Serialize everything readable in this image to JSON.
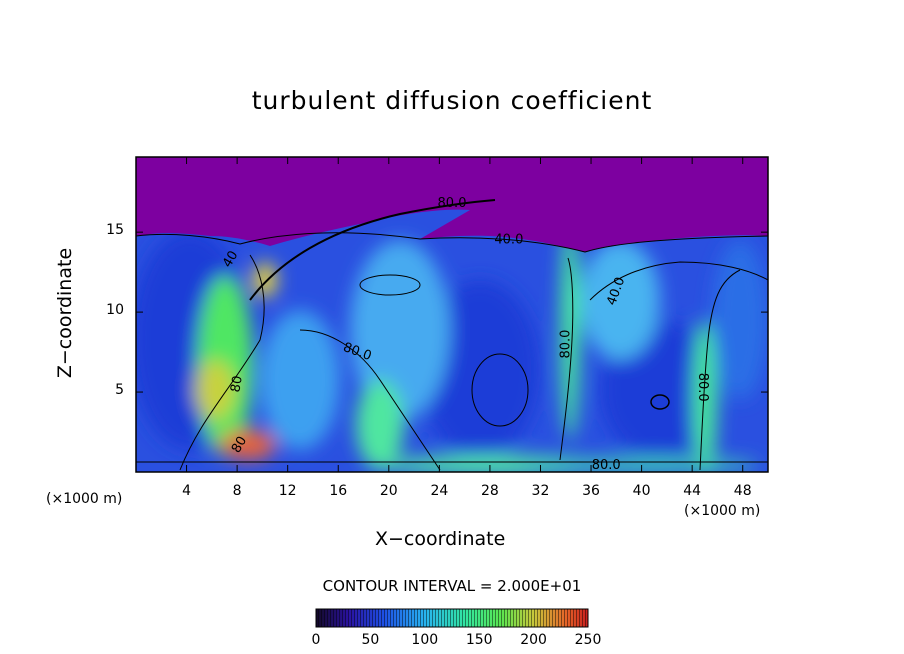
{
  "title": "turbulent diffusion coefficient",
  "contour_interval_text": "CONTOUR INTERVAL = 2.000E+01",
  "colors": {
    "background": "#ffffff",
    "top_field": "#7d00a0",
    "low_field": "#1e3cd7",
    "mid_field": "#3ca0f0",
    "high_field": "#32e678",
    "peak_field": "#e63c28"
  },
  "chart_data": {
    "type": "heatmap",
    "title": "turbulent diffusion coefficient",
    "xlabel": "X−coordinate",
    "ylabel": "Z−coordinate",
    "x_unit_label": "(×1000 m)",
    "y_unit_label": "(×1000 m)",
    "xlim": [
      0,
      50
    ],
    "ylim": [
      0,
      19.7
    ],
    "x_ticks": [
      4,
      8,
      12,
      16,
      20,
      24,
      28,
      32,
      36,
      40,
      44,
      48
    ],
    "y_ticks": [
      5,
      10,
      15
    ],
    "colorbar": {
      "min": 0,
      "max": 250,
      "ticks": [
        0,
        50,
        100,
        150,
        200,
        250
      ]
    },
    "contour_interval": 20,
    "contour_labels": [
      {
        "text": "40.0",
        "x": 29.5,
        "z": 14.5,
        "rotate": 0
      },
      {
        "text": "40.0",
        "x": 38.0,
        "z": 11.3,
        "rotate": -70
      },
      {
        "text": "80.0",
        "x": 17.5,
        "z": 7.5,
        "rotate": 20
      },
      {
        "text": "80.0",
        "x": 34.0,
        "z": 8.0,
        "rotate": -90
      },
      {
        "text": "80.0",
        "x": 44.8,
        "z": 5.3,
        "rotate": 90
      },
      {
        "text": "80.0",
        "x": 37.2,
        "z": 0.4,
        "rotate": 0
      },
      {
        "text": "80.0",
        "x": 25.0,
        "z": 16.8,
        "rotate": 0
      },
      {
        "text": "80",
        "x": 8.0,
        "z": 5.5,
        "rotate": -80
      },
      {
        "text": "80",
        "x": 8.2,
        "z": 1.7,
        "rotate": -60
      },
      {
        "text": "40",
        "x": 7.5,
        "z": 13.3,
        "rotate": -60
      }
    ]
  }
}
